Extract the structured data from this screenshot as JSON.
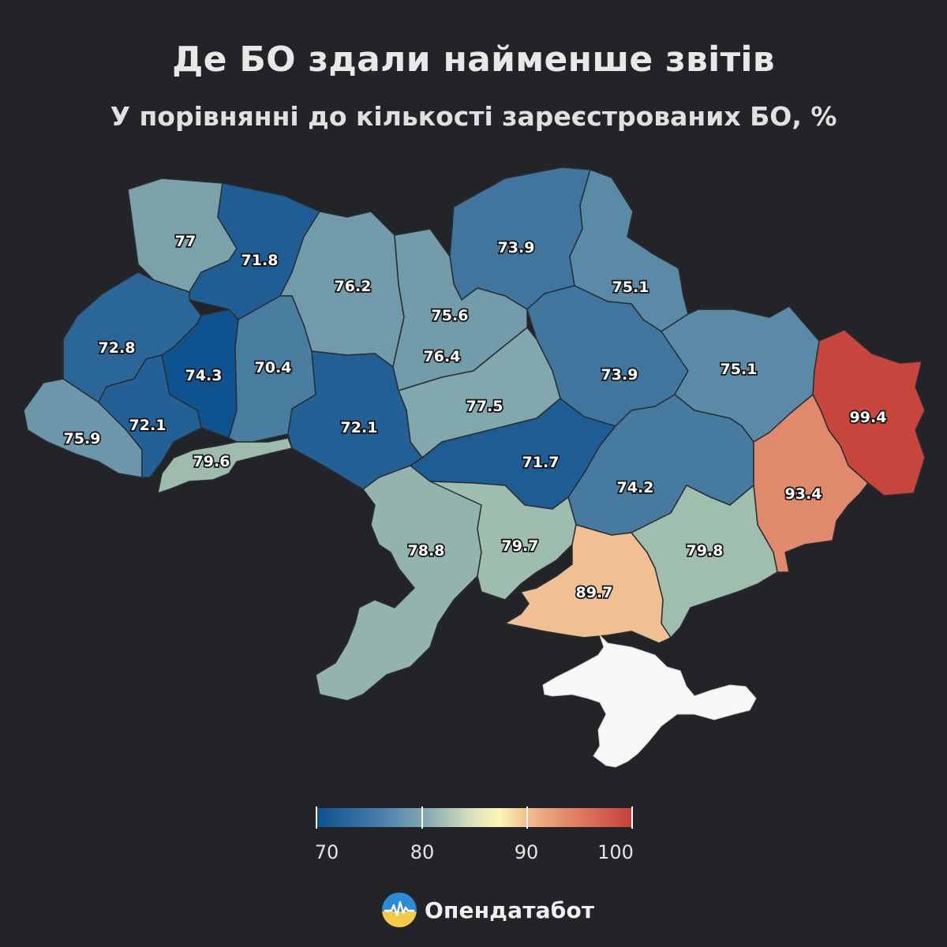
{
  "title": "Де БО здали найменше звітів",
  "subtitle": "У порівнянні до кількості зареєстрованих БО, %",
  "legend": {
    "ticks": [
      "70",
      "80",
      "90",
      "100"
    ]
  },
  "brand": {
    "name": "Опендатабот",
    "icon": "opendatabot-logo-icon"
  },
  "chart_data": {
    "type": "choropleth",
    "title": "Де БО здали найменше звітів",
    "subtitle": "У порівнянні до кількості зареєстрованих БО, %",
    "scale_range": [
      69.5,
      100.5
    ],
    "region_values": [
      {
        "value": 77.0
      },
      {
        "value": 71.8
      },
      {
        "value": 76.2
      },
      {
        "value": 73.9
      },
      {
        "value": 75.1
      },
      {
        "value": 72.8
      },
      {
        "value": 74.3
      },
      {
        "value": 70.4
      },
      {
        "value": 75.6
      },
      {
        "value": 76.4
      },
      {
        "value": 73.9
      },
      {
        "value": 75.1
      },
      {
        "value": 99.4
      },
      {
        "value": 77.5
      },
      {
        "value": 75.9
      },
      {
        "value": 72.1
      },
      {
        "value": 72.1
      },
      {
        "value": 71.7
      },
      {
        "value": 74.2
      },
      {
        "value": 93.4
      },
      {
        "value": 79.6
      },
      {
        "value": 78.8
      },
      {
        "value": 79.7
      },
      {
        "value": 79.8
      },
      {
        "value": 89.7
      }
    ]
  }
}
